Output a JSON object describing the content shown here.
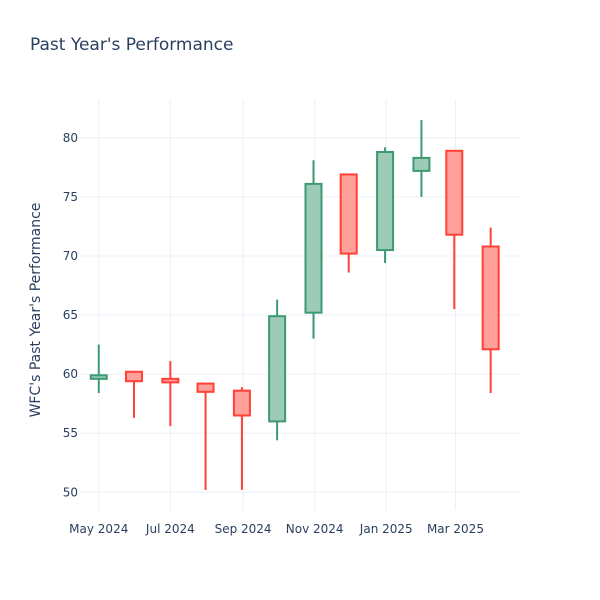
{
  "chart_data": {
    "type": "candlestick",
    "title": "Past Year's Performance",
    "xlabel": "",
    "ylabel": "WFC's Past Year's Performance",
    "ylim": [
      48.5,
      83.2
    ],
    "y_ticks": [
      50,
      55,
      60,
      65,
      70,
      75,
      80
    ],
    "x_ticks": [
      {
        "date": "2024-05-01",
        "label": "May 2024"
      },
      {
        "date": "2024-07-01",
        "label": "Jul 2024"
      },
      {
        "date": "2024-09-01",
        "label": "Sep 2024"
      },
      {
        "date": "2024-11-01",
        "label": "Nov 2024"
      },
      {
        "date": "2025-01-01",
        "label": "Jan 2025"
      },
      {
        "date": "2025-03-01",
        "label": "Mar 2025"
      }
    ],
    "x_range": [
      "2024-04-15",
      "2025-04-25"
    ],
    "increasing_color": "#3d9970",
    "increasing_fill": "#9ecbb8",
    "decreasing_color": "#ff4136",
    "decreasing_fill": "#ffa09b",
    "grid": true,
    "candles": [
      {
        "date": "2024-05-01",
        "open": 59.6,
        "high": 62.5,
        "low": 58.4,
        "close": 59.9
      },
      {
        "date": "2024-05-31",
        "open": 60.2,
        "high": 60.2,
        "low": 56.3,
        "close": 59.4
      },
      {
        "date": "2024-07-01",
        "open": 59.6,
        "high": 61.1,
        "low": 55.6,
        "close": 59.3
      },
      {
        "date": "2024-07-31",
        "open": 59.2,
        "high": 59.2,
        "low": 50.2,
        "close": 58.5
      },
      {
        "date": "2024-08-31",
        "open": 58.6,
        "high": 58.9,
        "low": 50.2,
        "close": 56.5
      },
      {
        "date": "2024-09-30",
        "open": 56.0,
        "high": 66.3,
        "low": 54.4,
        "close": 64.9
      },
      {
        "date": "2024-10-31",
        "open": 65.2,
        "high": 78.1,
        "low": 63.0,
        "close": 76.1
      },
      {
        "date": "2024-11-30",
        "open": 76.9,
        "high": 76.9,
        "low": 68.6,
        "close": 70.2
      },
      {
        "date": "2024-12-31",
        "open": 70.5,
        "high": 79.2,
        "low": 69.4,
        "close": 78.8
      },
      {
        "date": "2025-01-31",
        "open": 77.2,
        "high": 81.5,
        "low": 75.0,
        "close": 78.3
      },
      {
        "date": "2025-02-28",
        "open": 78.9,
        "high": 78.9,
        "low": 65.5,
        "close": 71.8
      },
      {
        "date": "2025-03-31",
        "open": 70.8,
        "high": 72.4,
        "low": 58.4,
        "close": 62.1
      }
    ]
  }
}
